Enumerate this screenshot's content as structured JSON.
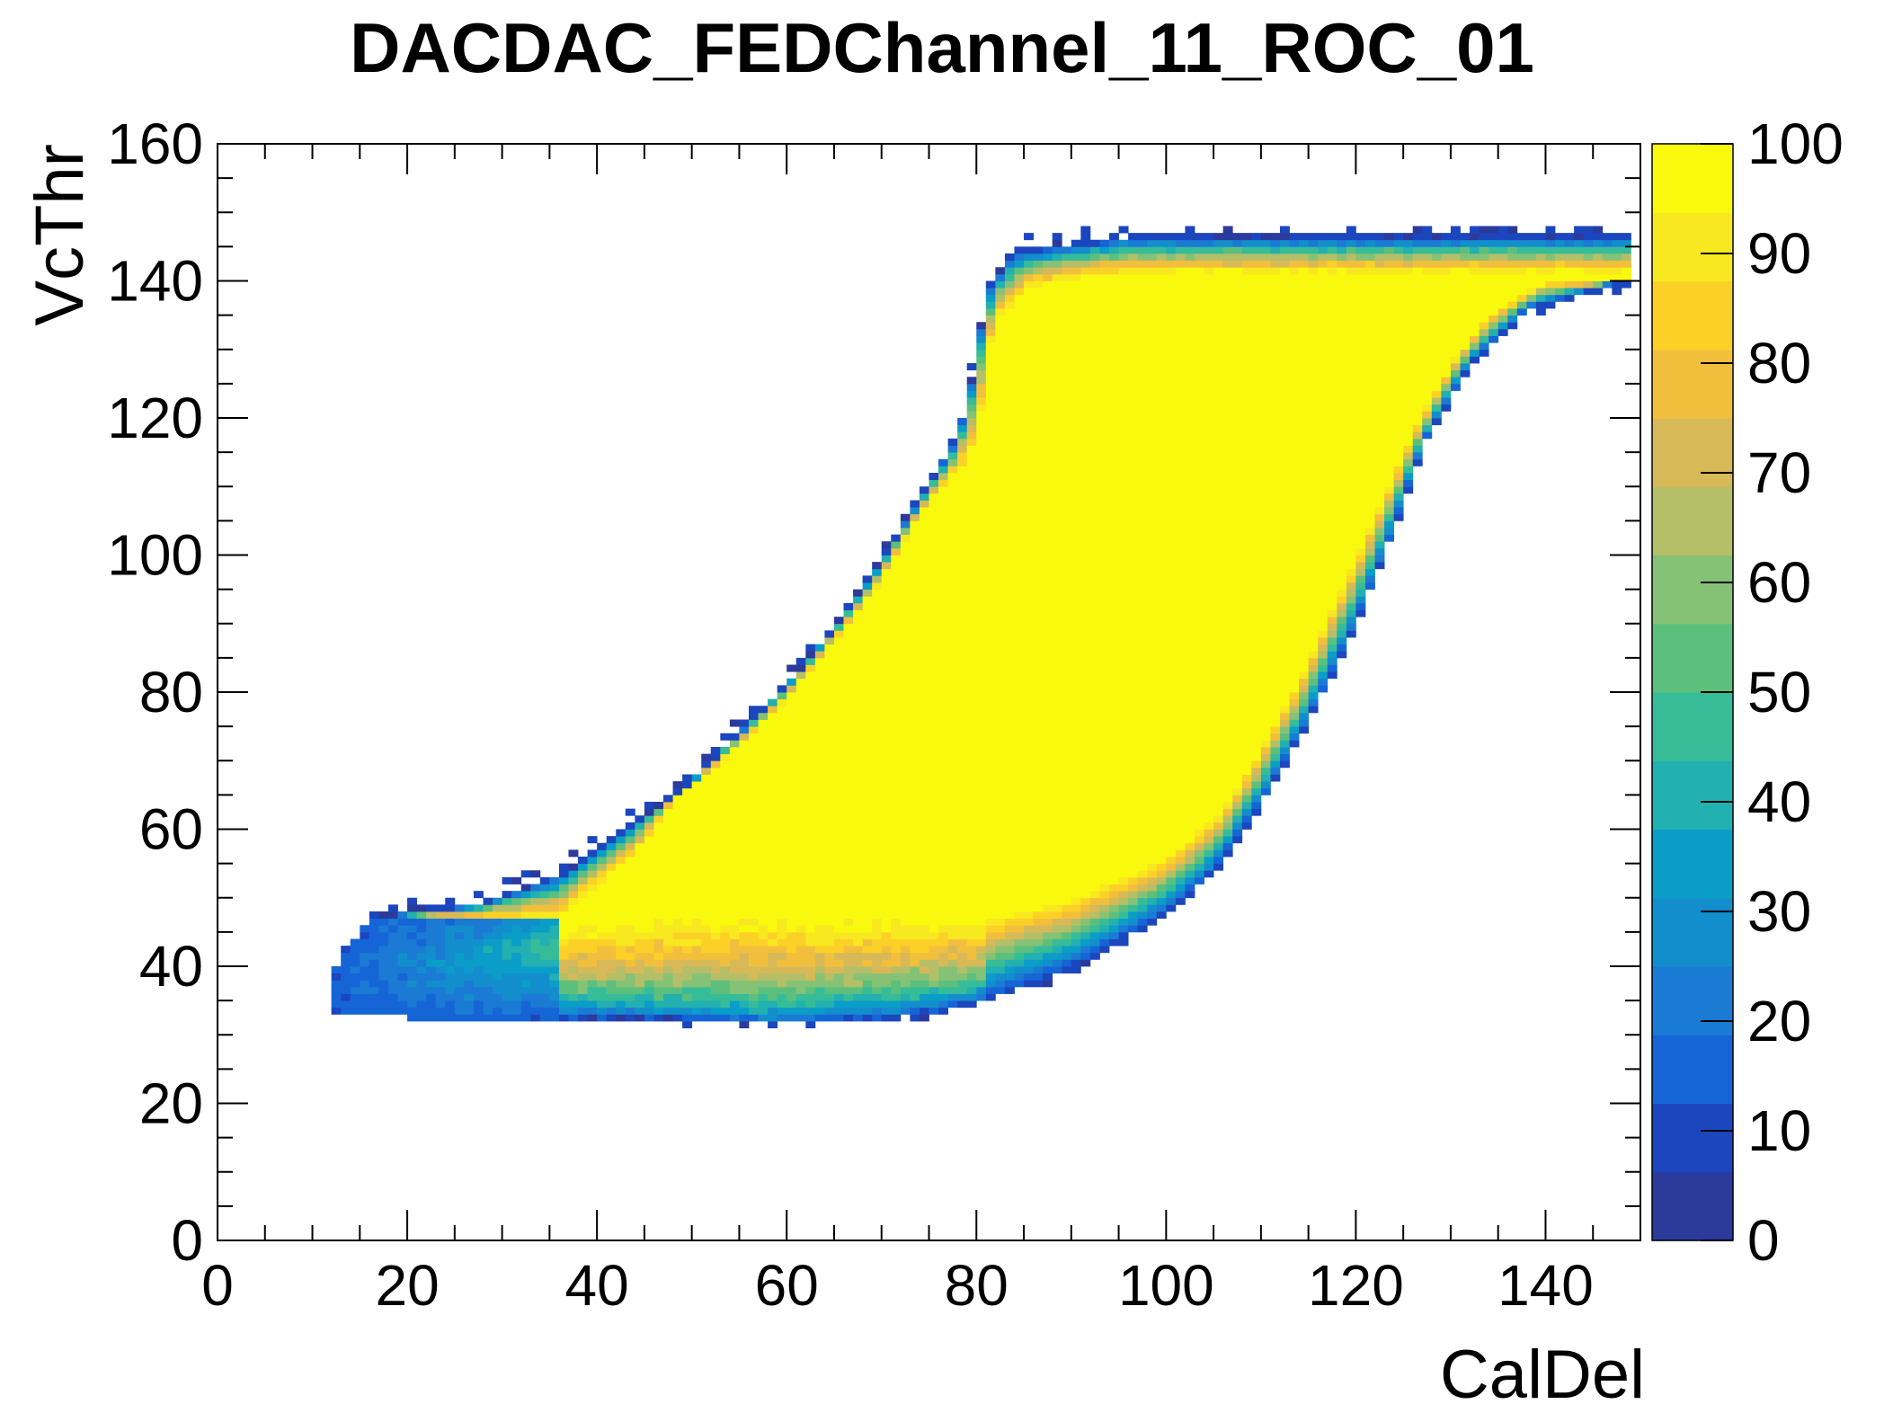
{
  "chart_data": {
    "type": "heatmap",
    "title": "DACDAC_FEDChannel_11_ROC_01",
    "xlabel": "CalDel",
    "ylabel": "VcThr",
    "xlim": [
      0,
      150
    ],
    "ylim": [
      0,
      160
    ],
    "zlim": [
      0,
      100
    ],
    "bin_width": 1,
    "grid": false,
    "legend": "none",
    "x_ticks": [
      "0",
      "20",
      "40",
      "60",
      "80",
      "100",
      "120",
      "140"
    ],
    "y_ticks": [
      "0",
      "20",
      "40",
      "60",
      "80",
      "100",
      "120",
      "140",
      "160"
    ],
    "z_ticks": [
      "0",
      "10",
      "20",
      "30",
      "40",
      "50",
      "60",
      "70",
      "80",
      "90",
      "100"
    ],
    "colormap": [
      "#2b3a9b",
      "#1c46be",
      "#1565d6",
      "#1a7ad4",
      "#138ecc",
      "#0a9dc8",
      "#22b0b0",
      "#36bd98",
      "#5cc07c",
      "#86c275",
      "#b5bf67",
      "#d8b957",
      "#f2bf3d",
      "#fcd127",
      "#f8e81f",
      "#f9f90e"
    ],
    "boundaries": {
      "description_units": "x = CalDel, y = VcThr",
      "bottom_edge": [
        [
          12,
          34
        ],
        [
          20,
          33
        ],
        [
          40,
          33
        ],
        [
          60,
          32
        ],
        [
          72,
          33
        ],
        [
          80,
          35
        ],
        [
          90,
          40
        ],
        [
          100,
          48
        ],
        [
          105,
          54
        ],
        [
          110,
          64
        ],
        [
          115,
          76
        ],
        [
          120,
          90
        ],
        [
          124,
          104
        ],
        [
          127,
          116
        ],
        [
          132,
          128
        ],
        [
          138,
          136
        ],
        [
          148,
          140
        ]
      ],
      "top_edge": [
        [
          12,
          38
        ],
        [
          16,
          47
        ],
        [
          28,
          49
        ],
        [
          36,
          53
        ],
        [
          40,
          57
        ],
        [
          46,
          63
        ],
        [
          50,
          67
        ],
        [
          55,
          74
        ],
        [
          60,
          81
        ],
        [
          66,
          91
        ],
        [
          70,
          99
        ],
        [
          74,
          108
        ],
        [
          78,
          117
        ],
        [
          80,
          128
        ],
        [
          81,
          138
        ],
        [
          84,
          144
        ],
        [
          96,
          146
        ],
        [
          130,
          146
        ],
        [
          148,
          146
        ]
      ],
      "yellow_core_bottom": [
        [
          36,
          46
        ],
        [
          50,
          47
        ],
        [
          70,
          47
        ],
        [
          80,
          47
        ],
        [
          90,
          50
        ],
        [
          100,
          56
        ],
        [
          106,
          63
        ],
        [
          110,
          72
        ],
        [
          114,
          82
        ],
        [
          118,
          94
        ],
        [
          122,
          106
        ],
        [
          126,
          118
        ],
        [
          130,
          128
        ],
        [
          134,
          135
        ],
        [
          140,
          140
        ]
      ],
      "yellow_core_top": [
        [
          36,
          47
        ],
        [
          44,
          56
        ],
        [
          48,
          64
        ],
        [
          55,
          72
        ],
        [
          60,
          79
        ],
        [
          66,
          89
        ],
        [
          70,
          96
        ],
        [
          74,
          106
        ],
        [
          80,
          115
        ],
        [
          81,
          126
        ],
        [
          82,
          134
        ],
        [
          86,
          139
        ],
        [
          96,
          141
        ],
        [
          130,
          141
        ],
        [
          140,
          141
        ]
      ]
    }
  }
}
